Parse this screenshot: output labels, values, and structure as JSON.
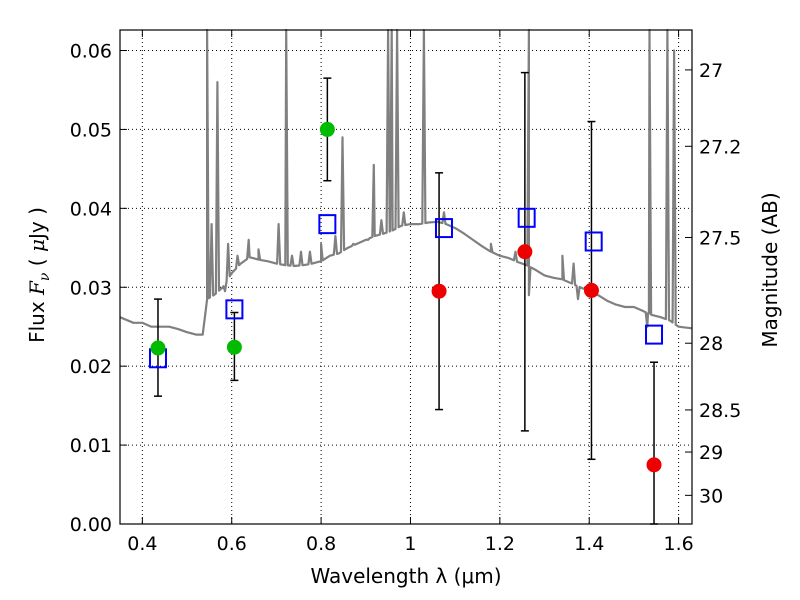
{
  "chart_data": {
    "type": "scatter",
    "xlabel": "Wavelength  λ (μm)",
    "ylabel": "Flux  F_ν  ( μJy )",
    "ylabel_parts": [
      "Flux  ",
      "F",
      "ν",
      "  ( ",
      "μ",
      "Jy )"
    ],
    "right_ylabel": "Magnitude (AB)",
    "xlim": [
      0.35,
      1.63
    ],
    "ylim": [
      0.0,
      0.0626
    ],
    "x_ticks": [
      0.4,
      0.6,
      0.8,
      1.0,
      1.2,
      1.4,
      1.6
    ],
    "x_tick_labels": [
      "0.4",
      "0.6",
      "0.8",
      "1",
      "1.2",
      "1.4",
      "1.6"
    ],
    "y_ticks": [
      0.0,
      0.01,
      0.02,
      0.03,
      0.04,
      0.05,
      0.06
    ],
    "y_tick_labels": [
      "0.00",
      "0.01",
      "0.02",
      "0.03",
      "0.04",
      "0.05",
      "0.06"
    ],
    "right_ticks": [
      {
        "mag": 27.0,
        "label": "27"
      },
      {
        "mag": 27.2,
        "label": "27.2"
      },
      {
        "mag": 27.5,
        "label": "27.5"
      },
      {
        "mag": 28.0,
        "label": "28"
      },
      {
        "mag": 28.5,
        "label": "28.5"
      },
      {
        "mag": 29.0,
        "label": "29"
      },
      {
        "mag": 30.0,
        "label": "30"
      }
    ],
    "grid": true,
    "grid_style": "dotted",
    "series": [
      {
        "kind": "model_spectrum",
        "color": "#808080",
        "continuum": [
          [
            0.35,
            0.0262
          ],
          [
            0.38,
            0.0255
          ],
          [
            0.4,
            0.0255
          ],
          [
            0.42,
            0.025
          ],
          [
            0.44,
            0.025
          ],
          [
            0.46,
            0.025
          ],
          [
            0.48,
            0.0247
          ],
          [
            0.5,
            0.0243
          ],
          [
            0.52,
            0.024
          ],
          [
            0.535,
            0.024
          ],
          [
            0.545,
            0.0285
          ],
          [
            0.56,
            0.029
          ],
          [
            0.58,
            0.03
          ],
          [
            0.6,
            0.0318
          ],
          [
            0.62,
            0.033
          ],
          [
            0.64,
            0.0338
          ],
          [
            0.66,
            0.0335
          ],
          [
            0.68,
            0.0333
          ],
          [
            0.7,
            0.033
          ],
          [
            0.72,
            0.0328
          ],
          [
            0.74,
            0.0327
          ],
          [
            0.76,
            0.0328
          ],
          [
            0.78,
            0.033
          ],
          [
            0.8,
            0.0333
          ],
          [
            0.82,
            0.034
          ],
          [
            0.84,
            0.0343
          ],
          [
            0.86,
            0.035
          ],
          [
            0.88,
            0.0355
          ],
          [
            0.9,
            0.036
          ],
          [
            0.92,
            0.0365
          ],
          [
            0.94,
            0.0368
          ],
          [
            0.96,
            0.0372
          ],
          [
            0.98,
            0.0378
          ],
          [
            1.0,
            0.038
          ],
          [
            1.02,
            0.038
          ],
          [
            1.04,
            0.0382
          ],
          [
            1.06,
            0.0383
          ],
          [
            1.08,
            0.038
          ],
          [
            1.1,
            0.0375
          ],
          [
            1.12,
            0.0368
          ],
          [
            1.14,
            0.036
          ],
          [
            1.16,
            0.0352
          ],
          [
            1.18,
            0.0345
          ],
          [
            1.2,
            0.034
          ],
          [
            1.22,
            0.0337
          ],
          [
            1.24,
            0.0332
          ],
          [
            1.26,
            0.0328
          ],
          [
            1.28,
            0.0322
          ],
          [
            1.3,
            0.0315
          ],
          [
            1.32,
            0.0312
          ],
          [
            1.34,
            0.031
          ],
          [
            1.36,
            0.0305
          ],
          [
            1.38,
            0.03
          ],
          [
            1.4,
            0.0295
          ],
          [
            1.42,
            0.029
          ],
          [
            1.44,
            0.0283
          ],
          [
            1.46,
            0.0278
          ],
          [
            1.48,
            0.0275
          ],
          [
            1.5,
            0.0275
          ],
          [
            1.52,
            0.027
          ],
          [
            1.54,
            0.0265
          ],
          [
            1.56,
            0.0262
          ],
          [
            1.58,
            0.0258
          ],
          [
            1.6,
            0.025
          ],
          [
            1.63,
            0.0248
          ]
        ],
        "emission_lines": [
          [
            0.545,
            0.0626
          ],
          [
            0.555,
            0.038
          ],
          [
            0.568,
            0.056
          ],
          [
            0.585,
            0.0295
          ],
          [
            0.592,
            0.0355
          ],
          [
            0.613,
            0.034
          ],
          [
            0.638,
            0.036
          ],
          [
            0.66,
            0.0348
          ],
          [
            0.705,
            0.038
          ],
          [
            0.722,
            0.0626
          ],
          [
            0.735,
            0.034
          ],
          [
            0.755,
            0.0345
          ],
          [
            0.775,
            0.0345
          ],
          [
            0.8,
            0.0355
          ],
          [
            0.832,
            0.0365
          ],
          [
            0.848,
            0.049
          ],
          [
            0.872,
            0.0355
          ],
          [
            0.905,
            0.036
          ],
          [
            0.918,
            0.0455
          ],
          [
            0.935,
            0.0385
          ],
          [
            0.95,
            0.0626
          ],
          [
            0.958,
            0.0626
          ],
          [
            0.97,
            0.0626
          ],
          [
            0.985,
            0.0395
          ],
          [
            1.03,
            0.0626
          ],
          [
            1.075,
            0.0395
          ],
          [
            1.18,
            0.0355
          ],
          [
            1.235,
            0.0345
          ],
          [
            1.265,
            0.0626
          ],
          [
            1.34,
            0.034
          ],
          [
            1.365,
            0.033
          ],
          [
            1.535,
            0.0626
          ],
          [
            1.575,
            0.0626
          ],
          [
            1.59,
            0.06
          ]
        ],
        "absorption_dips": [
          [
            1.265,
            0.029
          ],
          [
            1.375,
            0.0285
          ],
          [
            1.53,
            0.025
          ]
        ]
      },
      {
        "kind": "model_bandpass",
        "marker": "open-square",
        "color": "#0000ff",
        "points": [
          {
            "x": 0.435,
            "y": 0.021
          },
          {
            "x": 0.606,
            "y": 0.0272
          },
          {
            "x": 0.814,
            "y": 0.038
          },
          {
            "x": 1.075,
            "y": 0.0375
          },
          {
            "x": 1.26,
            "y": 0.0388
          },
          {
            "x": 1.41,
            "y": 0.0358
          },
          {
            "x": 1.545,
            "y": 0.024
          }
        ]
      },
      {
        "kind": "measured",
        "marker": "filled-circle",
        "color": "#00bb00",
        "points": [
          {
            "x": 0.435,
            "y": 0.0223,
            "ylo": 0.0162,
            "yhi": 0.0285
          },
          {
            "x": 0.606,
            "y": 0.0224,
            "ylo": 0.0182,
            "yhi": 0.0268
          },
          {
            "x": 0.814,
            "y": 0.05,
            "ylo": 0.0435,
            "yhi": 0.0565
          }
        ]
      },
      {
        "kind": "measured",
        "marker": "filled-circle",
        "color": "#ee0000",
        "points": [
          {
            "x": 1.064,
            "y": 0.0295,
            "ylo": 0.0145,
            "yhi": 0.0445
          },
          {
            "x": 1.256,
            "y": 0.0345,
            "ylo": 0.0118,
            "yhi": 0.0572
          },
          {
            "x": 1.405,
            "y": 0.0296,
            "ylo": 0.0082,
            "yhi": 0.051
          },
          {
            "x": 1.545,
            "y": 0.0075,
            "ylo": 0.0,
            "yhi": 0.0205
          }
        ]
      }
    ]
  }
}
